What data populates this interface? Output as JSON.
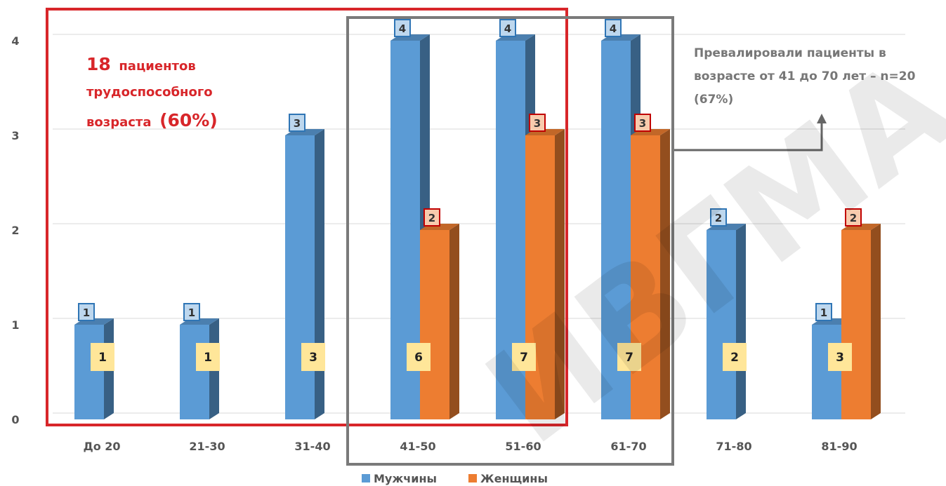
{
  "chart_data": {
    "type": "bar",
    "categories": [
      "До 20",
      "21-30",
      "31-40",
      "41-50",
      "51-60",
      "61-70",
      "71-80",
      "81-90"
    ],
    "series": [
      {
        "name": "Мужчины",
        "color": "#5b9bd5",
        "values": [
          1,
          1,
          3,
          4,
          4,
          4,
          2,
          1
        ]
      },
      {
        "name": "Женщины",
        "color": "#ed7d31",
        "values": [
          0,
          0,
          0,
          2,
          3,
          3,
          0,
          2
        ]
      }
    ],
    "totals": [
      1,
      1,
      3,
      6,
      7,
      7,
      2,
      3
    ],
    "yticks": [
      0,
      1,
      2,
      3,
      4
    ],
    "ylim": [
      0,
      4
    ],
    "grid": true,
    "legend_position": "bottom",
    "bars_3d": true
  },
  "annotations": {
    "working_age_number": "18",
    "working_age_line1": "пациентов",
    "working_age_line2": "трудоспособного",
    "working_age_line3": "возраста",
    "working_age_percent": "(60%)",
    "prevail_line1": "Превалировали пациенты в",
    "prevail_line2": "возрасте от 41 до 70 лет – n=20",
    "prevail_line3": "(67%)"
  },
  "watermark": {
    "text": "ИВГМА"
  }
}
